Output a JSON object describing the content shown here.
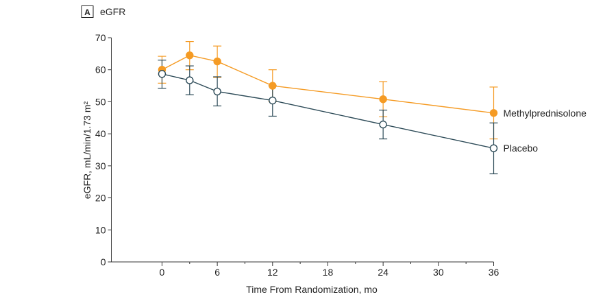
{
  "panel": {
    "letter": "A",
    "title": "eGFR"
  },
  "colors": {
    "methylprednisolone": "#f59b24",
    "placebo": "#2c4a57",
    "axis": "#333333"
  },
  "chart_data": {
    "type": "line",
    "xlabel": "Time From Randomization, mo",
    "ylabel": "eGFR, mL/min/1.73 m²",
    "xlim": [
      -5.5,
      36
    ],
    "ylim": [
      0,
      70
    ],
    "xticks": [
      0,
      6,
      12,
      18,
      24,
      30,
      36
    ],
    "yticks": [
      0,
      10,
      20,
      30,
      40,
      50,
      60,
      70
    ],
    "x_minor_ticks": [
      3,
      9,
      15,
      21,
      27,
      33
    ],
    "grid": false,
    "legend": "inline labels at right end of lines",
    "series": [
      {
        "name": "Methylprednisolone",
        "marker": "filled-circle",
        "color": "#f59b24",
        "x": [
          0,
          3,
          6,
          12,
          24,
          36
        ],
        "y": [
          60.0,
          64.5,
          62.6,
          55.0,
          50.8,
          46.5
        ],
        "err_low": [
          55.8,
          60.0,
          57.6,
          50.0,
          45.3,
          38.4
        ],
        "err_high": [
          64.2,
          68.8,
          67.4,
          60.0,
          56.3,
          54.6
        ]
      },
      {
        "name": "Placebo",
        "marker": "open-circle",
        "color": "#2c4a57",
        "x": [
          0,
          3,
          6,
          12,
          24,
          36
        ],
        "y": [
          58.7,
          56.7,
          53.2,
          50.4,
          42.9,
          35.5
        ],
        "err_low": [
          54.2,
          52.2,
          48.7,
          45.5,
          38.4,
          27.5
        ],
        "err_high": [
          63.0,
          61.2,
          57.8,
          55.0,
          47.4,
          43.4
        ]
      }
    ]
  }
}
